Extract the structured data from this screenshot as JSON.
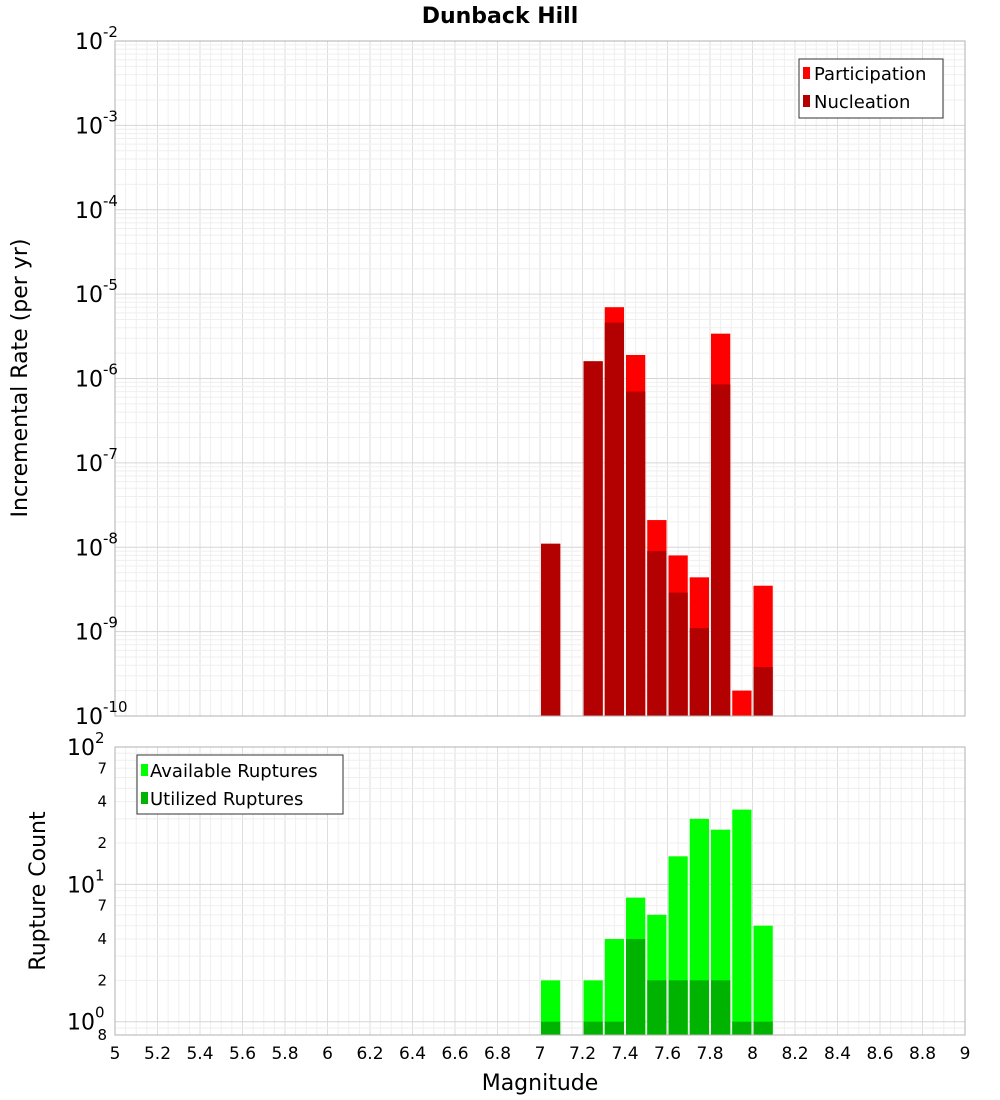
{
  "chart_data": [
    {
      "type": "bar",
      "title": "Dunback Hill",
      "xlabel": "Magnitude",
      "ylabel": "Incremental Rate (per yr)",
      "yscale": "log",
      "xlim": [
        5,
        9
      ],
      "ylim": [
        1e-10,
        0.01
      ],
      "bar_width": 0.1,
      "grid": true,
      "legend_position": "top-right",
      "series": [
        {
          "name": "Participation",
          "color": "#ff0000",
          "x": [
            7.05,
            7.25,
            7.35,
            7.45,
            7.55,
            7.65,
            7.75,
            7.85,
            7.95,
            8.05
          ],
          "values": [
            1.1e-08,
            1.6e-06,
            7e-06,
            1.9e-06,
            2.1e-08,
            8e-09,
            4.4e-09,
            3.4e-06,
            2e-10,
            3.5e-09
          ]
        },
        {
          "name": "Nucleation",
          "color": "#b30000",
          "x": [
            7.05,
            7.25,
            7.35,
            7.45,
            7.55,
            7.65,
            7.75,
            7.85,
            8.05
          ],
          "values": [
            1.1e-08,
            1.6e-06,
            4.6e-06,
            7e-07,
            9e-09,
            2.9e-09,
            1.1e-09,
            8.5e-07,
            3.8e-10
          ]
        }
      ],
      "y_ticks": [
        {
          "base": "10",
          "exp": "-10"
        },
        {
          "base": "10",
          "exp": "-9"
        },
        {
          "base": "10",
          "exp": "-8"
        },
        {
          "base": "10",
          "exp": "-7"
        },
        {
          "base": "10",
          "exp": "-6"
        },
        {
          "base": "10",
          "exp": "-5"
        },
        {
          "base": "10",
          "exp": "-4"
        },
        {
          "base": "10",
          "exp": "-3"
        },
        {
          "base": "10",
          "exp": "-2"
        }
      ]
    },
    {
      "type": "bar",
      "xlabel": "Magnitude",
      "ylabel": "Rupture Count",
      "yscale": "log",
      "xlim": [
        5,
        9
      ],
      "ylim": [
        0.8,
        100
      ],
      "bar_width": 0.1,
      "grid": true,
      "legend_position": "top-left",
      "series": [
        {
          "name": "Available Ruptures",
          "color": "#00ff00",
          "x": [
            7.05,
            7.25,
            7.35,
            7.45,
            7.55,
            7.65,
            7.75,
            7.85,
            7.95,
            8.05
          ],
          "values": [
            2,
            2,
            4,
            8,
            6,
            16,
            30,
            25,
            35,
            5
          ]
        },
        {
          "name": "Utilized Ruptures",
          "color": "#00b300",
          "x": [
            7.05,
            7.25,
            7.35,
            7.45,
            7.55,
            7.65,
            7.75,
            7.85,
            7.95,
            8.05
          ],
          "values": [
            1,
            1,
            1,
            4,
            2,
            2,
            2,
            2,
            1,
            1
          ]
        }
      ],
      "y_major_ticks": [
        {
          "base": "10",
          "exp": "0"
        },
        {
          "base": "10",
          "exp": "1"
        },
        {
          "base": "10",
          "exp": "2"
        }
      ],
      "y_minor_ticks": [
        "8",
        "2",
        "4",
        "7",
        "2",
        "4",
        "7"
      ]
    }
  ],
  "x_ticks": [
    "5",
    "5.2",
    "5.4",
    "5.6",
    "5.8",
    "6",
    "6.2",
    "6.4",
    "6.6",
    "6.8",
    "7",
    "7.2",
    "7.4",
    "7.6",
    "7.8",
    "8",
    "8.2",
    "8.4",
    "8.6",
    "8.8",
    "9"
  ]
}
